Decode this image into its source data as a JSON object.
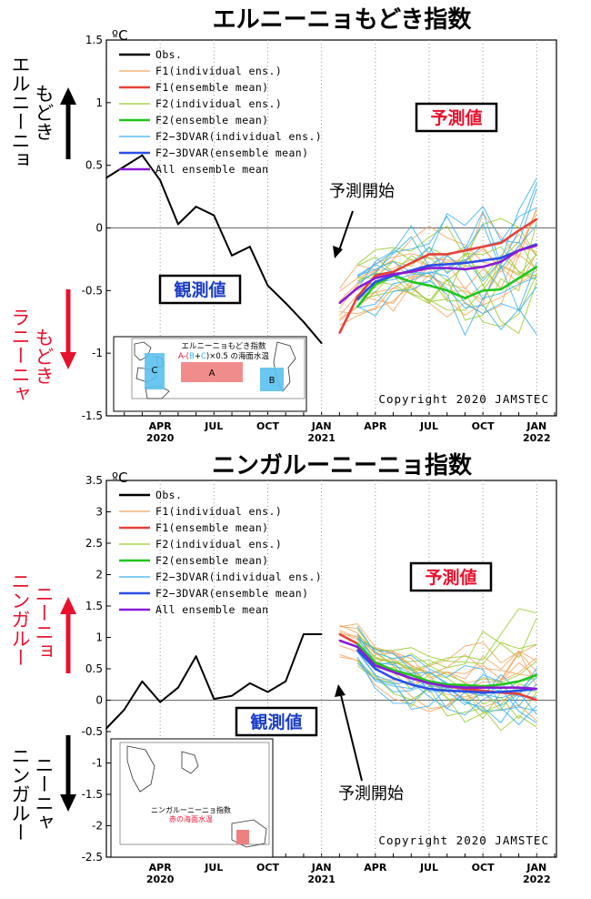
{
  "chart_data": [
    {
      "type": "line",
      "title": "エルニーニョもどき指数",
      "unit": "ºC",
      "ylim": [
        -1.5,
        1.5
      ],
      "yticks": [
        1.5,
        1,
        0.5,
        0,
        -0.5,
        -1,
        -1.5
      ],
      "x_tick_labels": [
        {
          "at": "2020-04",
          "label": "APR",
          "year": "2020"
        },
        {
          "at": "2020-07",
          "label": "JUL",
          "year": ""
        },
        {
          "at": "2020-10",
          "label": "OCT",
          "year": ""
        },
        {
          "at": "2021-01",
          "label": "JAN",
          "year": "2021"
        },
        {
          "at": "2021-04",
          "label": "APR",
          "year": ""
        },
        {
          "at": "2021-07",
          "label": "JUL",
          "year": ""
        },
        {
          "at": "2021-10",
          "label": "OCT",
          "year": ""
        },
        {
          "at": "2022-01",
          "label": "JAN",
          "year": "2022"
        }
      ],
      "xlim": [
        "2020-01",
        "2022-02"
      ],
      "legend": [
        "Obs.",
        "F1(individual ens.)",
        "F1(ensemble mean)",
        "F2(individual ens.)",
        "F2(ensemble mean)",
        "F2−3DVAR(individual ens.)",
        "F2−3DVAR(ensemble mean)",
        "All ensemble mean"
      ],
      "legend_position": "top-left",
      "annotations": {
        "forecast_box": "予測値",
        "observed_box": "観測値",
        "forecast_start": "予測開始",
        "copyright": "Copyright 2020 JAMSTEC",
        "up_label": [
          "エルニーニョ",
          "もどき"
        ],
        "down_label": [
          "ラニーニャ",
          "もどき"
        ]
      },
      "inset_map": {
        "title": "エルニーニョもどき指数",
        "formula_prefix": "A-(",
        "formula_b": "B",
        "formula_plus": "+",
        "formula_c": "C",
        "formula_suffix": ")×0.5 の海面水温",
        "regions": [
          "A",
          "B",
          "C"
        ]
      },
      "series": [
        {
          "name": "Obs.",
          "x": [
            "2020-01",
            "2020-02",
            "2020-03",
            "2020-04",
            "2020-05",
            "2020-06",
            "2020-07",
            "2020-08",
            "2020-09",
            "2020-10",
            "2020-11",
            "2020-12",
            "2021-01"
          ],
          "values": [
            0.4,
            0.49,
            0.58,
            0.38,
            0.03,
            0.17,
            0.1,
            -0.22,
            -0.15,
            -0.46,
            -0.6,
            -0.75,
            -0.92
          ]
        },
        {
          "name": "F1(ensemble mean)",
          "x": [
            "2021-02",
            "2021-03",
            "2021-04",
            "2021-05",
            "2021-06",
            "2021-07",
            "2021-08",
            "2021-09",
            "2021-10",
            "2021-11",
            "2021-12",
            "2022-01"
          ],
          "values": [
            -0.84,
            -0.55,
            -0.38,
            -0.35,
            -0.28,
            -0.21,
            -0.21,
            -0.18,
            -0.15,
            -0.12,
            -0.02,
            0.07
          ]
        },
        {
          "name": "F2(ensemble mean)",
          "x": [
            "2021-03",
            "2021-04",
            "2021-05",
            "2021-06",
            "2021-07",
            "2021-08",
            "2021-09",
            "2021-10",
            "2021-11",
            "2021-12",
            "2022-01"
          ],
          "values": [
            -0.63,
            -0.45,
            -0.38,
            -0.43,
            -0.46,
            -0.5,
            -0.56,
            -0.5,
            -0.49,
            -0.4,
            -0.31
          ]
        },
        {
          "name": "F2−3DVAR(ensemble mean)",
          "x": [
            "2021-03",
            "2021-04",
            "2021-05",
            "2021-06",
            "2021-07",
            "2021-08",
            "2021-09",
            "2021-10",
            "2021-11",
            "2021-12",
            "2022-01"
          ],
          "values": [
            -0.57,
            -0.43,
            -0.38,
            -0.34,
            -0.3,
            -0.29,
            -0.28,
            -0.26,
            -0.24,
            -0.18,
            -0.13
          ]
        },
        {
          "name": "All ensemble mean",
          "x": [
            "2021-02",
            "2021-03",
            "2021-04",
            "2021-05",
            "2021-06",
            "2021-07",
            "2021-08",
            "2021-09",
            "2021-10",
            "2021-11",
            "2021-12",
            "2022-01"
          ],
          "values": [
            -0.6,
            -0.48,
            -0.4,
            -0.37,
            -0.35,
            -0.32,
            -0.32,
            -0.33,
            -0.31,
            -0.27,
            -0.18,
            -0.14
          ]
        }
      ]
    },
    {
      "type": "line",
      "title": "ニンガルーニーニョ指数",
      "unit": "ºC",
      "ylim": [
        -2.5,
        3.5
      ],
      "yticks": [
        3.5,
        3,
        2.5,
        2,
        1.5,
        1,
        0.5,
        0,
        -0.5,
        -1,
        -1.5,
        -2,
        -2.5
      ],
      "x_tick_labels": [
        {
          "at": "2020-04",
          "label": "APR",
          "year": "2020"
        },
        {
          "at": "2020-07",
          "label": "JUL",
          "year": ""
        },
        {
          "at": "2020-10",
          "label": "OCT",
          "year": ""
        },
        {
          "at": "2021-01",
          "label": "JAN",
          "year": "2021"
        },
        {
          "at": "2021-04",
          "label": "APR",
          "year": ""
        },
        {
          "at": "2021-07",
          "label": "JUL",
          "year": ""
        },
        {
          "at": "2021-10",
          "label": "OCT",
          "year": ""
        },
        {
          "at": "2022-01",
          "label": "JAN",
          "year": "2022"
        }
      ],
      "xlim": [
        "2020-01",
        "2022-02"
      ],
      "legend": [
        "Obs.",
        "F1(individual ens.)",
        "F1(ensemble mean)",
        "F2(individual ens.)",
        "F2(ensemble mean)",
        "F2−3DVAR(individual ens.)",
        "F2−3DVAR(ensemble mean)",
        "All ensemble mean"
      ],
      "legend_position": "top-left",
      "annotations": {
        "forecast_box": "予測値",
        "observed_box": "観測値",
        "forecast_start": "予測開始",
        "copyright": "Copyright 2020 JAMSTEC",
        "up_label": [
          "ニンガルー",
          "ニーニョ"
        ],
        "down_label": [
          "ニンガルー",
          "ニーニャ"
        ]
      },
      "inset_map": {
        "title": "ニンガルーニーニョ指数",
        "subtitle": "赤の海面水温"
      },
      "series": [
        {
          "name": "Obs.",
          "x": [
            "2020-01",
            "2020-02",
            "2020-03",
            "2020-04",
            "2020-05",
            "2020-06",
            "2020-07",
            "2020-08",
            "2020-09",
            "2020-10",
            "2020-11",
            "2020-12",
            "2021-01"
          ],
          "values": [
            -0.45,
            -0.15,
            0.3,
            -0.03,
            0.2,
            0.7,
            0.02,
            0.07,
            0.27,
            0.13,
            0.3,
            1.05,
            1.05
          ]
        },
        {
          "name": "F1(ensemble mean)",
          "x": [
            "2021-02",
            "2021-03",
            "2021-04",
            "2021-05",
            "2021-06",
            "2021-07",
            "2021-08",
            "2021-09",
            "2021-10",
            "2021-11",
            "2021-12",
            "2022-01"
          ],
          "values": [
            1.05,
            0.9,
            0.6,
            0.45,
            0.35,
            0.28,
            0.22,
            0.18,
            0.15,
            0.12,
            0.1,
            0.0
          ]
        },
        {
          "name": "F2(ensemble mean)",
          "x": [
            "2021-03",
            "2021-04",
            "2021-05",
            "2021-06",
            "2021-07",
            "2021-08",
            "2021-09",
            "2021-10",
            "2021-11",
            "2021-12",
            "2022-01"
          ],
          "values": [
            0.9,
            0.6,
            0.48,
            0.4,
            0.3,
            0.25,
            0.24,
            0.22,
            0.25,
            0.3,
            0.4
          ]
        },
        {
          "name": "F2−3DVAR(ensemble mean)",
          "x": [
            "2021-03",
            "2021-04",
            "2021-05",
            "2021-06",
            "2021-07",
            "2021-08",
            "2021-09",
            "2021-10",
            "2021-11",
            "2021-12",
            "2022-01"
          ],
          "values": [
            0.8,
            0.5,
            0.35,
            0.25,
            0.18,
            0.15,
            0.14,
            0.12,
            0.13,
            0.15,
            0.18
          ]
        },
        {
          "name": "All ensemble mean",
          "x": [
            "2021-02",
            "2021-03",
            "2021-04",
            "2021-05",
            "2021-06",
            "2021-07",
            "2021-08",
            "2021-09",
            "2021-10",
            "2021-11",
            "2021-12",
            "2022-01"
          ],
          "values": [
            0.95,
            0.85,
            0.55,
            0.45,
            0.35,
            0.27,
            0.22,
            0.2,
            0.2,
            0.2,
            0.2,
            0.18
          ]
        }
      ]
    }
  ],
  "colors": {
    "Obs.": "#000000",
    "F1(individual ens.)": "#f4a460",
    "F1(ensemble mean)": "#e8413a",
    "F2(individual ens.)": "#9acd32",
    "F2(ensemble mean)": "#22c61e",
    "F2−3DVAR(individual ens.)": "#3ab0f0",
    "F2−3DVAR(ensemble mean)": "#2b4fe8",
    "All ensemble mean": "#8a1bd6",
    "forecast_text": "#e8112d",
    "observed_text": "#1a3cc8",
    "arrow_up_lower": "#e8112d",
    "arrow_up_upper": "#000000"
  }
}
